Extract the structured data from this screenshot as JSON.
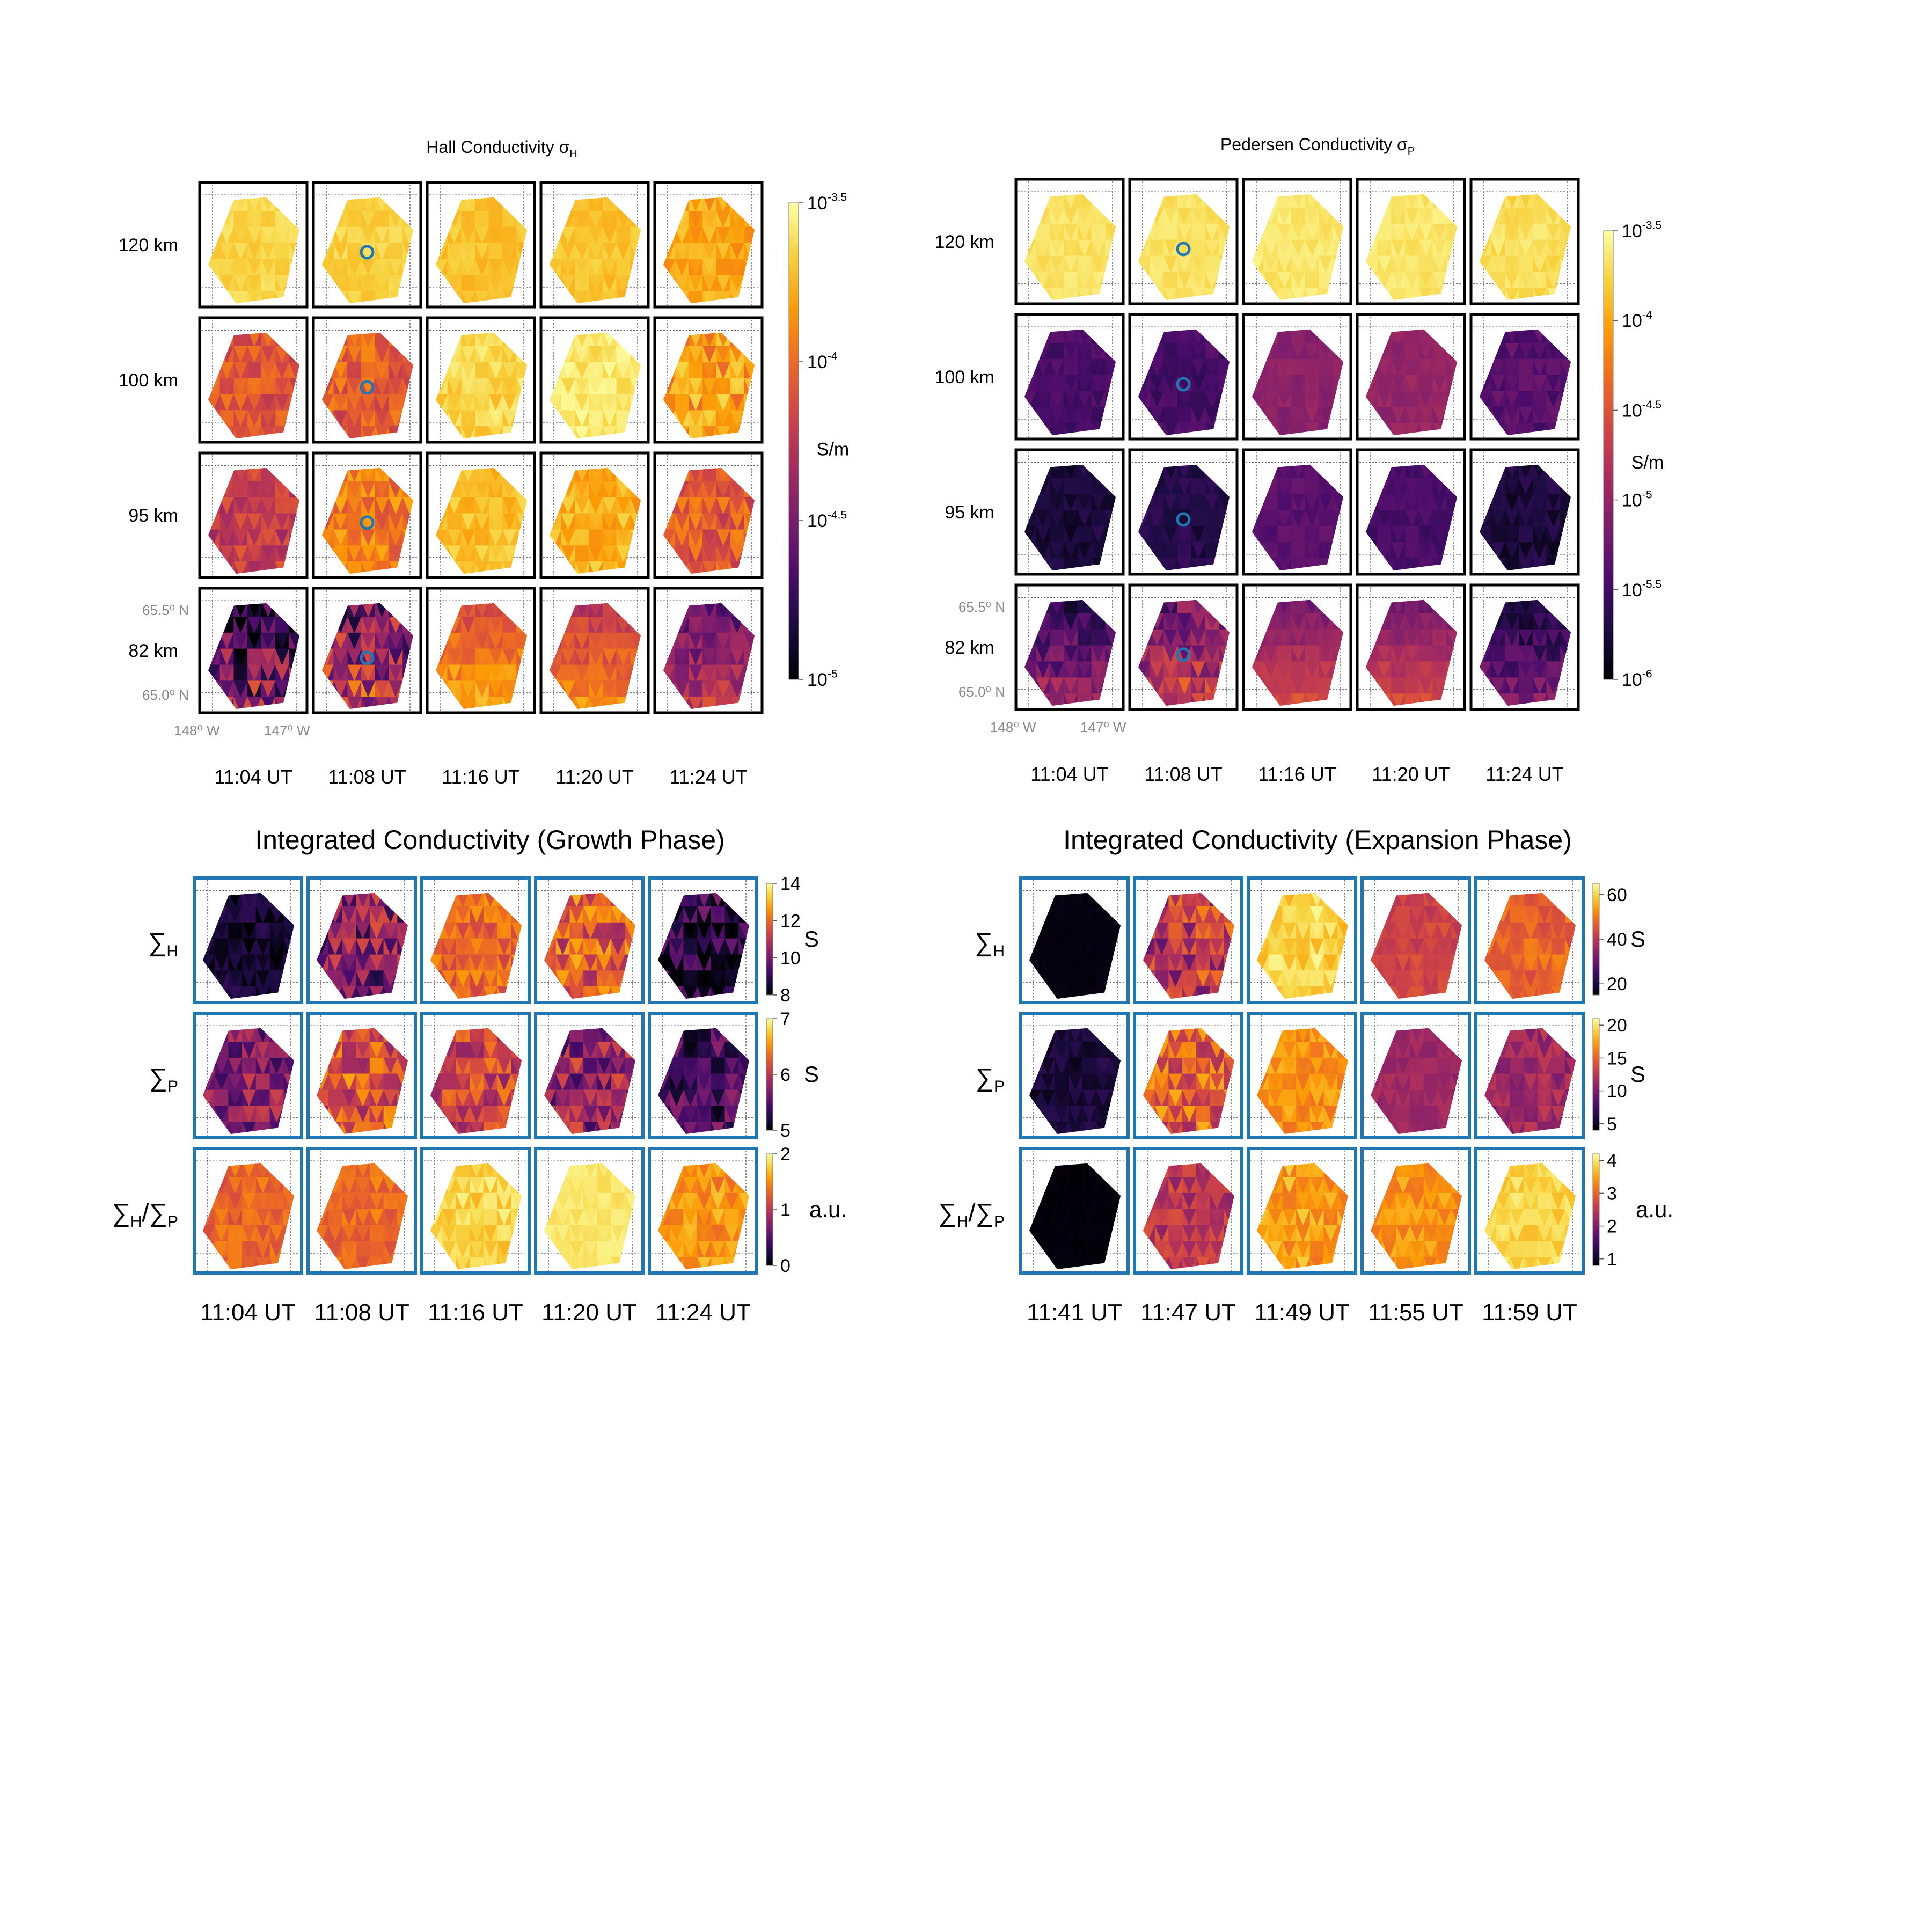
{
  "colormap": [
    "#000004",
    "#1b0c41",
    "#4a0c6b",
    "#781c6d",
    "#a52c60",
    "#cf4446",
    "#ed6925",
    "#fb9b06",
    "#f7d13d",
    "#fcffa4"
  ],
  "marker_color": "#1f78b4",
  "grid_border_color": "#000000",
  "integrated_border_color": "#1f77b4",
  "chart_data": [
    {
      "type": "heatmap",
      "id": "hall",
      "title_base": "Hall Conductivity σ",
      "title_sub": "H",
      "columns": [
        "11:04 UT",
        "11:08 UT",
        "11:16 UT",
        "11:20 UT",
        "11:24 UT"
      ],
      "rows": [
        "120 km",
        "100 km",
        "95 km",
        "82 km"
      ],
      "colorbar": {
        "unit": "S/m",
        "ticks": [
          {
            "base": "10",
            "exp": "-3.5"
          },
          {
            "base": "10",
            "exp": "-4"
          },
          {
            "base": "10",
            "exp": "-4.5"
          },
          {
            "base": "10",
            "exp": "-5"
          }
        ],
        "tick_values": [
          -3.5,
          -4,
          -4.5,
          -5
        ],
        "range": [
          -5,
          -3.5
        ]
      },
      "lat_labels": [
        "65.5⁰ N",
        "65.0⁰ N"
      ],
      "lon_labels": [
        "148⁰ W",
        "147⁰ W"
      ],
      "marker_column": 1,
      "levels": [
        [
          0.9,
          0.89,
          0.86,
          0.86,
          0.8
        ],
        [
          0.6,
          0.63,
          0.9,
          0.94,
          0.78
        ],
        [
          0.52,
          0.7,
          0.85,
          0.82,
          0.62
        ],
        [
          0.25,
          0.42,
          0.7,
          0.62,
          0.38
        ]
      ],
      "variation": [
        [
          0.04,
          0.04,
          0.04,
          0.04,
          0.07
        ],
        [
          0.1,
          0.12,
          0.06,
          0.05,
          0.13
        ],
        [
          0.1,
          0.12,
          0.06,
          0.08,
          0.12
        ],
        [
          0.28,
          0.28,
          0.08,
          0.08,
          0.12
        ]
      ]
    },
    {
      "type": "heatmap",
      "id": "pedersen",
      "title_base": "Pedersen Conductivity σ",
      "title_sub": "P",
      "columns": [
        "11:04 UT",
        "11:08 UT",
        "11:16 UT",
        "11:20 UT",
        "11:24 UT"
      ],
      "rows": [
        "120 km",
        "100 km",
        "95 km",
        "82 km"
      ],
      "colorbar": {
        "unit": "S/m",
        "ticks": [
          {
            "base": "10",
            "exp": "-3.5"
          },
          {
            "base": "10",
            "exp": "-4"
          },
          {
            "base": "10",
            "exp": "-4.5"
          },
          {
            "base": "10",
            "exp": "-5"
          },
          {
            "base": "10",
            "exp": "-5.5"
          },
          {
            "base": "10",
            "exp": "-6"
          }
        ],
        "tick_values": [
          -3.5,
          -4,
          -4.5,
          -5,
          -5.5,
          -6
        ],
        "range": [
          -6,
          -3.5
        ]
      },
      "lat_labels": [
        "65.5⁰ N",
        "65.0⁰ N"
      ],
      "lon_labels": [
        "148⁰ W",
        "147⁰ W"
      ],
      "marker_column": 1,
      "levels": [
        [
          0.93,
          0.93,
          0.94,
          0.94,
          0.92
        ],
        [
          0.22,
          0.22,
          0.38,
          0.4,
          0.25
        ],
        [
          0.1,
          0.13,
          0.26,
          0.22,
          0.1
        ],
        [
          0.28,
          0.42,
          0.45,
          0.45,
          0.22
        ]
      ],
      "variation": [
        [
          0.03,
          0.03,
          0.03,
          0.03,
          0.04
        ],
        [
          0.05,
          0.06,
          0.04,
          0.04,
          0.06
        ],
        [
          0.05,
          0.06,
          0.04,
          0.04,
          0.06
        ],
        [
          0.12,
          0.16,
          0.05,
          0.05,
          0.1
        ]
      ]
    },
    {
      "type": "heatmap",
      "id": "growth",
      "title": "Integrated Conductivity (Growth Phase)",
      "columns": [
        "11:04 UT",
        "11:08 UT",
        "11:16 UT",
        "11:20 UT",
        "11:24 UT"
      ],
      "rows": [
        {
          "symbol": "∑",
          "sub": "H",
          "unit": "S",
          "ticks": [
            "14",
            "12",
            "10",
            "8"
          ],
          "tick_values": [
            14,
            12,
            10,
            8
          ],
          "range": [
            8,
            14
          ]
        },
        {
          "symbol": "∑",
          "sub": "P",
          "unit": "S",
          "ticks": [
            "7",
            "6",
            "5"
          ],
          "tick_values": [
            7,
            6,
            5
          ],
          "range": [
            5,
            7
          ]
        },
        {
          "symbol": "∑",
          "sub": "H",
          "symbol2": "∑",
          "sub2": "P",
          "unit": "a.u.",
          "ticks": [
            "2",
            "1",
            "0"
          ],
          "tick_values": [
            2,
            1,
            0
          ],
          "range": [
            0,
            2
          ]
        }
      ],
      "levels": [
        [
          0.08,
          0.35,
          0.66,
          0.62,
          0.12
        ],
        [
          0.35,
          0.6,
          0.55,
          0.4,
          0.22
        ],
        [
          0.65,
          0.66,
          0.9,
          0.94,
          0.76
        ]
      ],
      "variation": [
        [
          0.1,
          0.25,
          0.12,
          0.2,
          0.22
        ],
        [
          0.2,
          0.2,
          0.18,
          0.22,
          0.2
        ],
        [
          0.08,
          0.08,
          0.07,
          0.03,
          0.1
        ]
      ]
    },
    {
      "type": "heatmap",
      "id": "expansion",
      "title": "Integrated Conductivity (Expansion Phase)",
      "columns": [
        "11:41 UT",
        "11:47 UT",
        "11:49 UT",
        "11:55 UT",
        "11:59 UT"
      ],
      "rows": [
        {
          "symbol": "∑",
          "sub": "H",
          "unit": "S",
          "ticks": [
            "60",
            "40",
            "20"
          ],
          "tick_values": [
            60,
            40,
            20
          ],
          "range": [
            15,
            65
          ]
        },
        {
          "symbol": "∑",
          "sub": "P",
          "unit": "S",
          "ticks": [
            "20",
            "15",
            "10",
            "5"
          ],
          "tick_values": [
            20,
            15,
            10,
            5
          ],
          "range": [
            4,
            21
          ]
        },
        {
          "symbol": "∑",
          "sub": "H",
          "symbol2": "∑",
          "sub2": "P",
          "unit": "a.u.",
          "ticks": [
            "4",
            "3",
            "2",
            "1"
          ],
          "tick_values": [
            4,
            3,
            2,
            1
          ],
          "range": [
            0.8,
            4.2
          ]
        }
      ],
      "levels": [
        [
          0.02,
          0.5,
          0.9,
          0.55,
          0.65
        ],
        [
          0.1,
          0.62,
          0.76,
          0.42,
          0.42
        ],
        [
          0.01,
          0.5,
          0.78,
          0.76,
          0.9
        ]
      ],
      "variation": [
        [
          0.01,
          0.22,
          0.08,
          0.06,
          0.08
        ],
        [
          0.06,
          0.2,
          0.08,
          0.05,
          0.1
        ],
        [
          0.01,
          0.12,
          0.1,
          0.08,
          0.06
        ]
      ]
    }
  ]
}
